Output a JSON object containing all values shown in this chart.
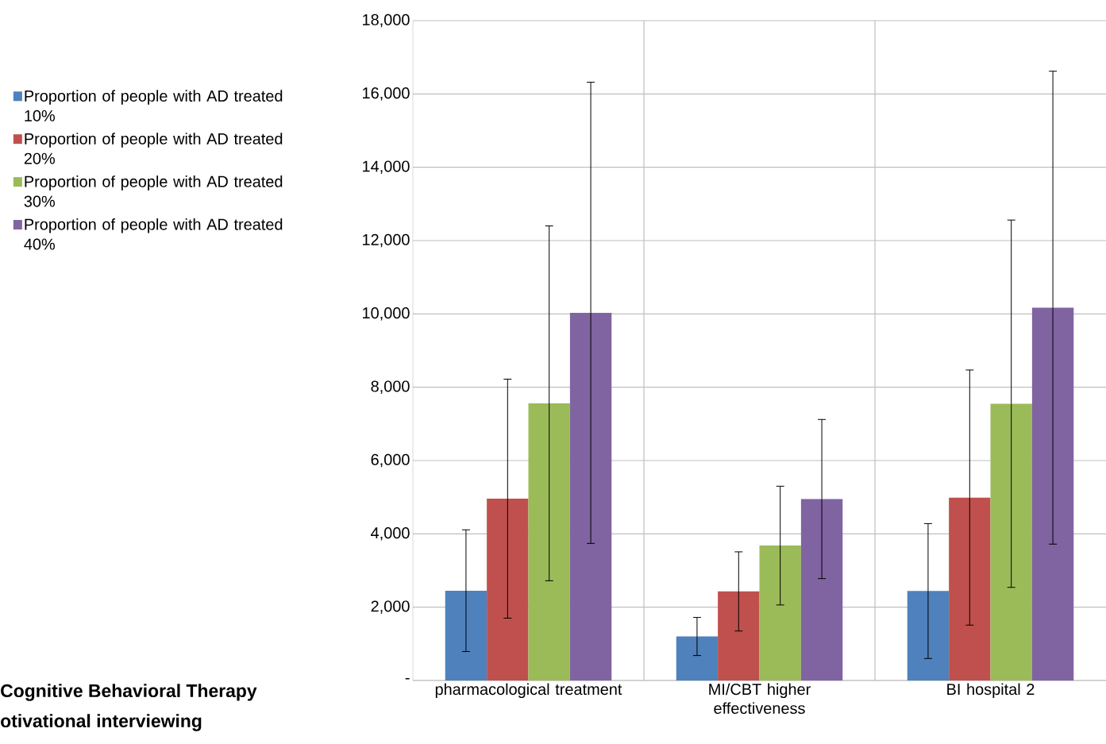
{
  "chart_data": {
    "type": "bar",
    "categories": [
      "pharmacological treatment",
      "MI/CBT higher effectiveness",
      "BI hospital 2"
    ],
    "series": [
      {
        "name": "Proportion of people with AD treated 10%",
        "color": "#4f81bd",
        "values": [
          2450,
          1200,
          2440
        ],
        "errors": [
          1660,
          520,
          1840
        ]
      },
      {
        "name": "Proportion of people with AD treated 20%",
        "color": "#c0504d",
        "values": [
          4960,
          2430,
          4990
        ],
        "errors": [
          3260,
          1080,
          3480
        ]
      },
      {
        "name": "Proportion of people with AD treated 30%",
        "color": "#9bbb59",
        "values": [
          7560,
          3680,
          7550
        ],
        "errors": [
          4840,
          1620,
          5010
        ]
      },
      {
        "name": "Proportion of people with AD treated 40%",
        "color": "#8064a2",
        "values": [
          10030,
          4950,
          10170
        ],
        "errors": [
          6290,
          2170,
          6450
        ]
      }
    ],
    "ylim": [
      0,
      18000
    ],
    "yticks": [
      {
        "value": 0,
        "label": "-"
      },
      {
        "value": 2000,
        "label": "2,000"
      },
      {
        "value": 4000,
        "label": "4,000"
      },
      {
        "value": 6000,
        "label": "6,000"
      },
      {
        "value": 8000,
        "label": "8,000"
      },
      {
        "value": 10000,
        "label": "10,000"
      },
      {
        "value": 12000,
        "label": "12,000"
      },
      {
        "value": 14000,
        "label": "14,000"
      },
      {
        "value": 16000,
        "label": "16,000"
      },
      {
        "value": 18000,
        "label": "18,000"
      }
    ],
    "grid": true,
    "legend": "left",
    "annotations": [
      "Cognitive Behavioral Therapy",
      "otivational interviewing"
    ]
  }
}
